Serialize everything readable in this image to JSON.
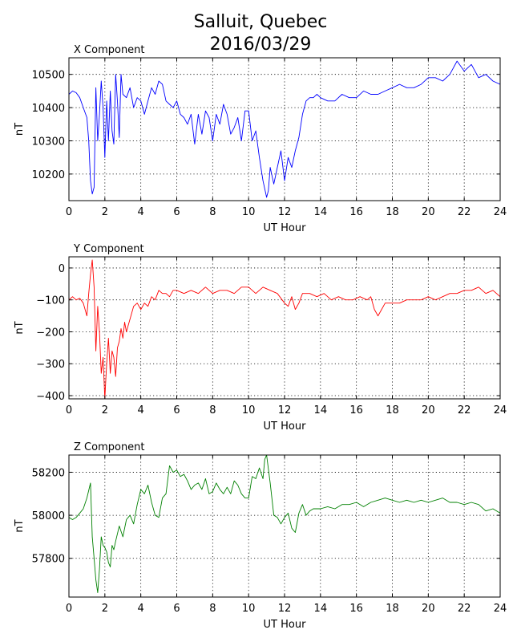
{
  "figure": {
    "title_line1": "Salluit, Quebec",
    "title_line2": "2016/03/29"
  },
  "chart_data": [
    {
      "type": "line",
      "title": "X Component",
      "xlabel": "UT Hour",
      "ylabel": "nT",
      "xlim": [
        0,
        24
      ],
      "ylim": [
        10120,
        10550
      ],
      "xticks": [
        0,
        2,
        4,
        6,
        8,
        10,
        12,
        14,
        16,
        18,
        20,
        22,
        24
      ],
      "yticks": [
        10200,
        10300,
        10400,
        10500
      ],
      "grid": true,
      "series": [
        {
          "color": "#0000ff",
          "x": [
            0,
            0.2,
            0.4,
            0.6,
            0.8,
            1.0,
            1.1,
            1.2,
            1.3,
            1.4,
            1.5,
            1.6,
            1.7,
            1.8,
            1.9,
            2.0,
            2.1,
            2.2,
            2.3,
            2.4,
            2.5,
            2.6,
            2.7,
            2.8,
            2.9,
            3.0,
            3.2,
            3.4,
            3.6,
            3.8,
            4.0,
            4.2,
            4.4,
            4.6,
            4.8,
            5.0,
            5.2,
            5.4,
            5.6,
            5.8,
            6.0,
            6.2,
            6.4,
            6.6,
            6.8,
            7.0,
            7.2,
            7.4,
            7.6,
            7.8,
            8.0,
            8.2,
            8.4,
            8.6,
            8.8,
            9.0,
            9.2,
            9.4,
            9.6,
            9.8,
            10.0,
            10.2,
            10.4,
            10.6,
            10.8,
            11.0,
            11.1,
            11.2,
            11.4,
            11.6,
            11.8,
            12.0,
            12.2,
            12.4,
            12.6,
            12.8,
            13.0,
            13.2,
            13.4,
            13.6,
            13.8,
            14.0,
            14.4,
            14.8,
            15.2,
            15.6,
            16.0,
            16.4,
            16.8,
            17.2,
            17.6,
            18.0,
            18.4,
            18.8,
            19.2,
            19.6,
            20.0,
            20.4,
            20.8,
            21.2,
            21.6,
            22.0,
            22.4,
            22.8,
            23.2,
            23.6,
            24.0
          ],
          "y": [
            10440,
            10450,
            10445,
            10430,
            10400,
            10370,
            10300,
            10180,
            10140,
            10160,
            10460,
            10300,
            10380,
            10480,
            10400,
            10250,
            10420,
            10300,
            10450,
            10330,
            10290,
            10500,
            10420,
            10310,
            10500,
            10440,
            10430,
            10460,
            10400,
            10430,
            10420,
            10380,
            10420,
            10460,
            10440,
            10480,
            10470,
            10420,
            10410,
            10400,
            10420,
            10380,
            10370,
            10350,
            10380,
            10290,
            10380,
            10320,
            10390,
            10370,
            10300,
            10380,
            10350,
            10410,
            10380,
            10320,
            10340,
            10370,
            10300,
            10390,
            10390,
            10300,
            10330,
            10250,
            10180,
            10130,
            10150,
            10220,
            10170,
            10220,
            10270,
            10180,
            10250,
            10220,
            10270,
            10310,
            10380,
            10420,
            10430,
            10430,
            10440,
            10430,
            10420,
            10420,
            10440,
            10430,
            10430,
            10450,
            10440,
            10440,
            10450,
            10460,
            10470,
            10460,
            10460,
            10470,
            10490,
            10490,
            10480,
            10500,
            10540,
            10510,
            10530,
            10490,
            10500,
            10480,
            10470
          ]
        }
      ]
    },
    {
      "type": "line",
      "title": "Y Component",
      "xlabel": "UT Hour",
      "ylabel": "nT",
      "xlim": [
        0,
        24
      ],
      "ylim": [
        -410,
        35
      ],
      "xticks": [
        0,
        2,
        4,
        6,
        8,
        10,
        12,
        14,
        16,
        18,
        20,
        22,
        24
      ],
      "yticks": [
        -400,
        -300,
        -200,
        -100,
        0
      ],
      "grid": true,
      "series": [
        {
          "color": "#ff0000",
          "x": [
            0,
            0.2,
            0.4,
            0.6,
            0.8,
            1.0,
            1.1,
            1.2,
            1.3,
            1.4,
            1.5,
            1.6,
            1.7,
            1.8,
            1.9,
            2.0,
            2.05,
            2.1,
            2.2,
            2.3,
            2.4,
            2.5,
            2.6,
            2.7,
            2.8,
            2.9,
            3.0,
            3.1,
            3.2,
            3.4,
            3.6,
            3.8,
            4.0,
            4.2,
            4.4,
            4.6,
            4.8,
            5.0,
            5.2,
            5.4,
            5.6,
            5.8,
            6.0,
            6.4,
            6.8,
            7.2,
            7.6,
            8.0,
            8.4,
            8.8,
            9.2,
            9.6,
            10.0,
            10.4,
            10.8,
            11.2,
            11.6,
            12.0,
            12.2,
            12.4,
            12.6,
            12.8,
            13.0,
            13.4,
            13.8,
            14.2,
            14.6,
            15.0,
            15.4,
            15.8,
            16.2,
            16.6,
            16.8,
            17.0,
            17.2,
            17.4,
            17.6,
            18.0,
            18.4,
            18.8,
            19.2,
            19.6,
            20.0,
            20.4,
            20.8,
            21.2,
            21.6,
            22.0,
            22.4,
            22.8,
            23.2,
            23.6,
            24.0
          ],
          "y": [
            -100,
            -90,
            -100,
            -95,
            -110,
            -150,
            -80,
            -20,
            25,
            -60,
            -260,
            -120,
            -200,
            -330,
            -280,
            -410,
            -350,
            -300,
            -220,
            -330,
            -260,
            -280,
            -340,
            -250,
            -230,
            -190,
            -220,
            -170,
            -200,
            -160,
            -120,
            -110,
            -130,
            -110,
            -120,
            -90,
            -100,
            -70,
            -80,
            -80,
            -90,
            -70,
            -70,
            -80,
            -70,
            -80,
            -60,
            -80,
            -70,
            -70,
            -80,
            -60,
            -60,
            -80,
            -60,
            -70,
            -80,
            -110,
            -120,
            -90,
            -130,
            -110,
            -80,
            -80,
            -90,
            -80,
            -100,
            -90,
            -100,
            -100,
            -90,
            -100,
            -90,
            -130,
            -150,
            -130,
            -110,
            -110,
            -110,
            -100,
            -100,
            -100,
            -90,
            -100,
            -90,
            -80,
            -80,
            -70,
            -70,
            -60,
            -80,
            -70,
            -90
          ]
        }
      ]
    },
    {
      "type": "line",
      "title": "Z Component",
      "xlabel": "UT Hour",
      "ylabel": "nT",
      "xlim": [
        0,
        24
      ],
      "ylim": [
        57620,
        58280
      ],
      "xticks": [
        0,
        2,
        4,
        6,
        8,
        10,
        12,
        14,
        16,
        18,
        20,
        22,
        24
      ],
      "yticks": [
        57800,
        58000,
        58200
      ],
      "grid": true,
      "series": [
        {
          "color": "#008000",
          "x": [
            0,
            0.2,
            0.4,
            0.6,
            0.8,
            1.0,
            1.2,
            1.3,
            1.4,
            1.5,
            1.6,
            1.7,
            1.8,
            1.9,
            2.0,
            2.1,
            2.2,
            2.3,
            2.4,
            2.5,
            2.6,
            2.8,
            3.0,
            3.2,
            3.4,
            3.6,
            3.8,
            4.0,
            4.2,
            4.4,
            4.6,
            4.8,
            5.0,
            5.2,
            5.4,
            5.6,
            5.8,
            6.0,
            6.2,
            6.4,
            6.6,
            6.8,
            7.0,
            7.2,
            7.4,
            7.6,
            7.8,
            8.0,
            8.2,
            8.4,
            8.6,
            8.8,
            9.0,
            9.2,
            9.4,
            9.6,
            9.8,
            10.0,
            10.2,
            10.4,
            10.6,
            10.8,
            10.9,
            11.0,
            11.2,
            11.4,
            11.6,
            11.8,
            12.0,
            12.2,
            12.4,
            12.6,
            12.8,
            13.0,
            13.2,
            13.4,
            13.6,
            14.0,
            14.4,
            14.8,
            15.2,
            15.6,
            16.0,
            16.4,
            16.8,
            17.2,
            17.6,
            18.0,
            18.4,
            18.8,
            19.2,
            19.6,
            20.0,
            20.4,
            20.8,
            21.2,
            21.6,
            22.0,
            22.4,
            22.8,
            23.2,
            23.6,
            24.0
          ],
          "y": [
            57990,
            57980,
            57990,
            58010,
            58030,
            58080,
            58150,
            57900,
            57800,
            57700,
            57640,
            57750,
            57900,
            57860,
            57850,
            57830,
            57780,
            57760,
            57860,
            57840,
            57880,
            57950,
            57900,
            57980,
            58000,
            57960,
            58050,
            58120,
            58100,
            58140,
            58060,
            58000,
            57990,
            58080,
            58100,
            58230,
            58200,
            58210,
            58180,
            58190,
            58160,
            58120,
            58140,
            58150,
            58120,
            58170,
            58100,
            58110,
            58150,
            58120,
            58100,
            58130,
            58100,
            58160,
            58140,
            58100,
            58080,
            58080,
            58180,
            58170,
            58220,
            58170,
            58260,
            58280,
            58150,
            58000,
            57990,
            57960,
            57990,
            58010,
            57940,
            57920,
            58010,
            58050,
            58000,
            58020,
            58030,
            58030,
            58040,
            58030,
            58050,
            58050,
            58060,
            58040,
            58060,
            58070,
            58080,
            58070,
            58060,
            58070,
            58060,
            58070,
            58060,
            58070,
            58080,
            58060,
            58060,
            58050,
            58060,
            58050,
            58020,
            58030,
            58010
          ]
        }
      ]
    }
  ]
}
